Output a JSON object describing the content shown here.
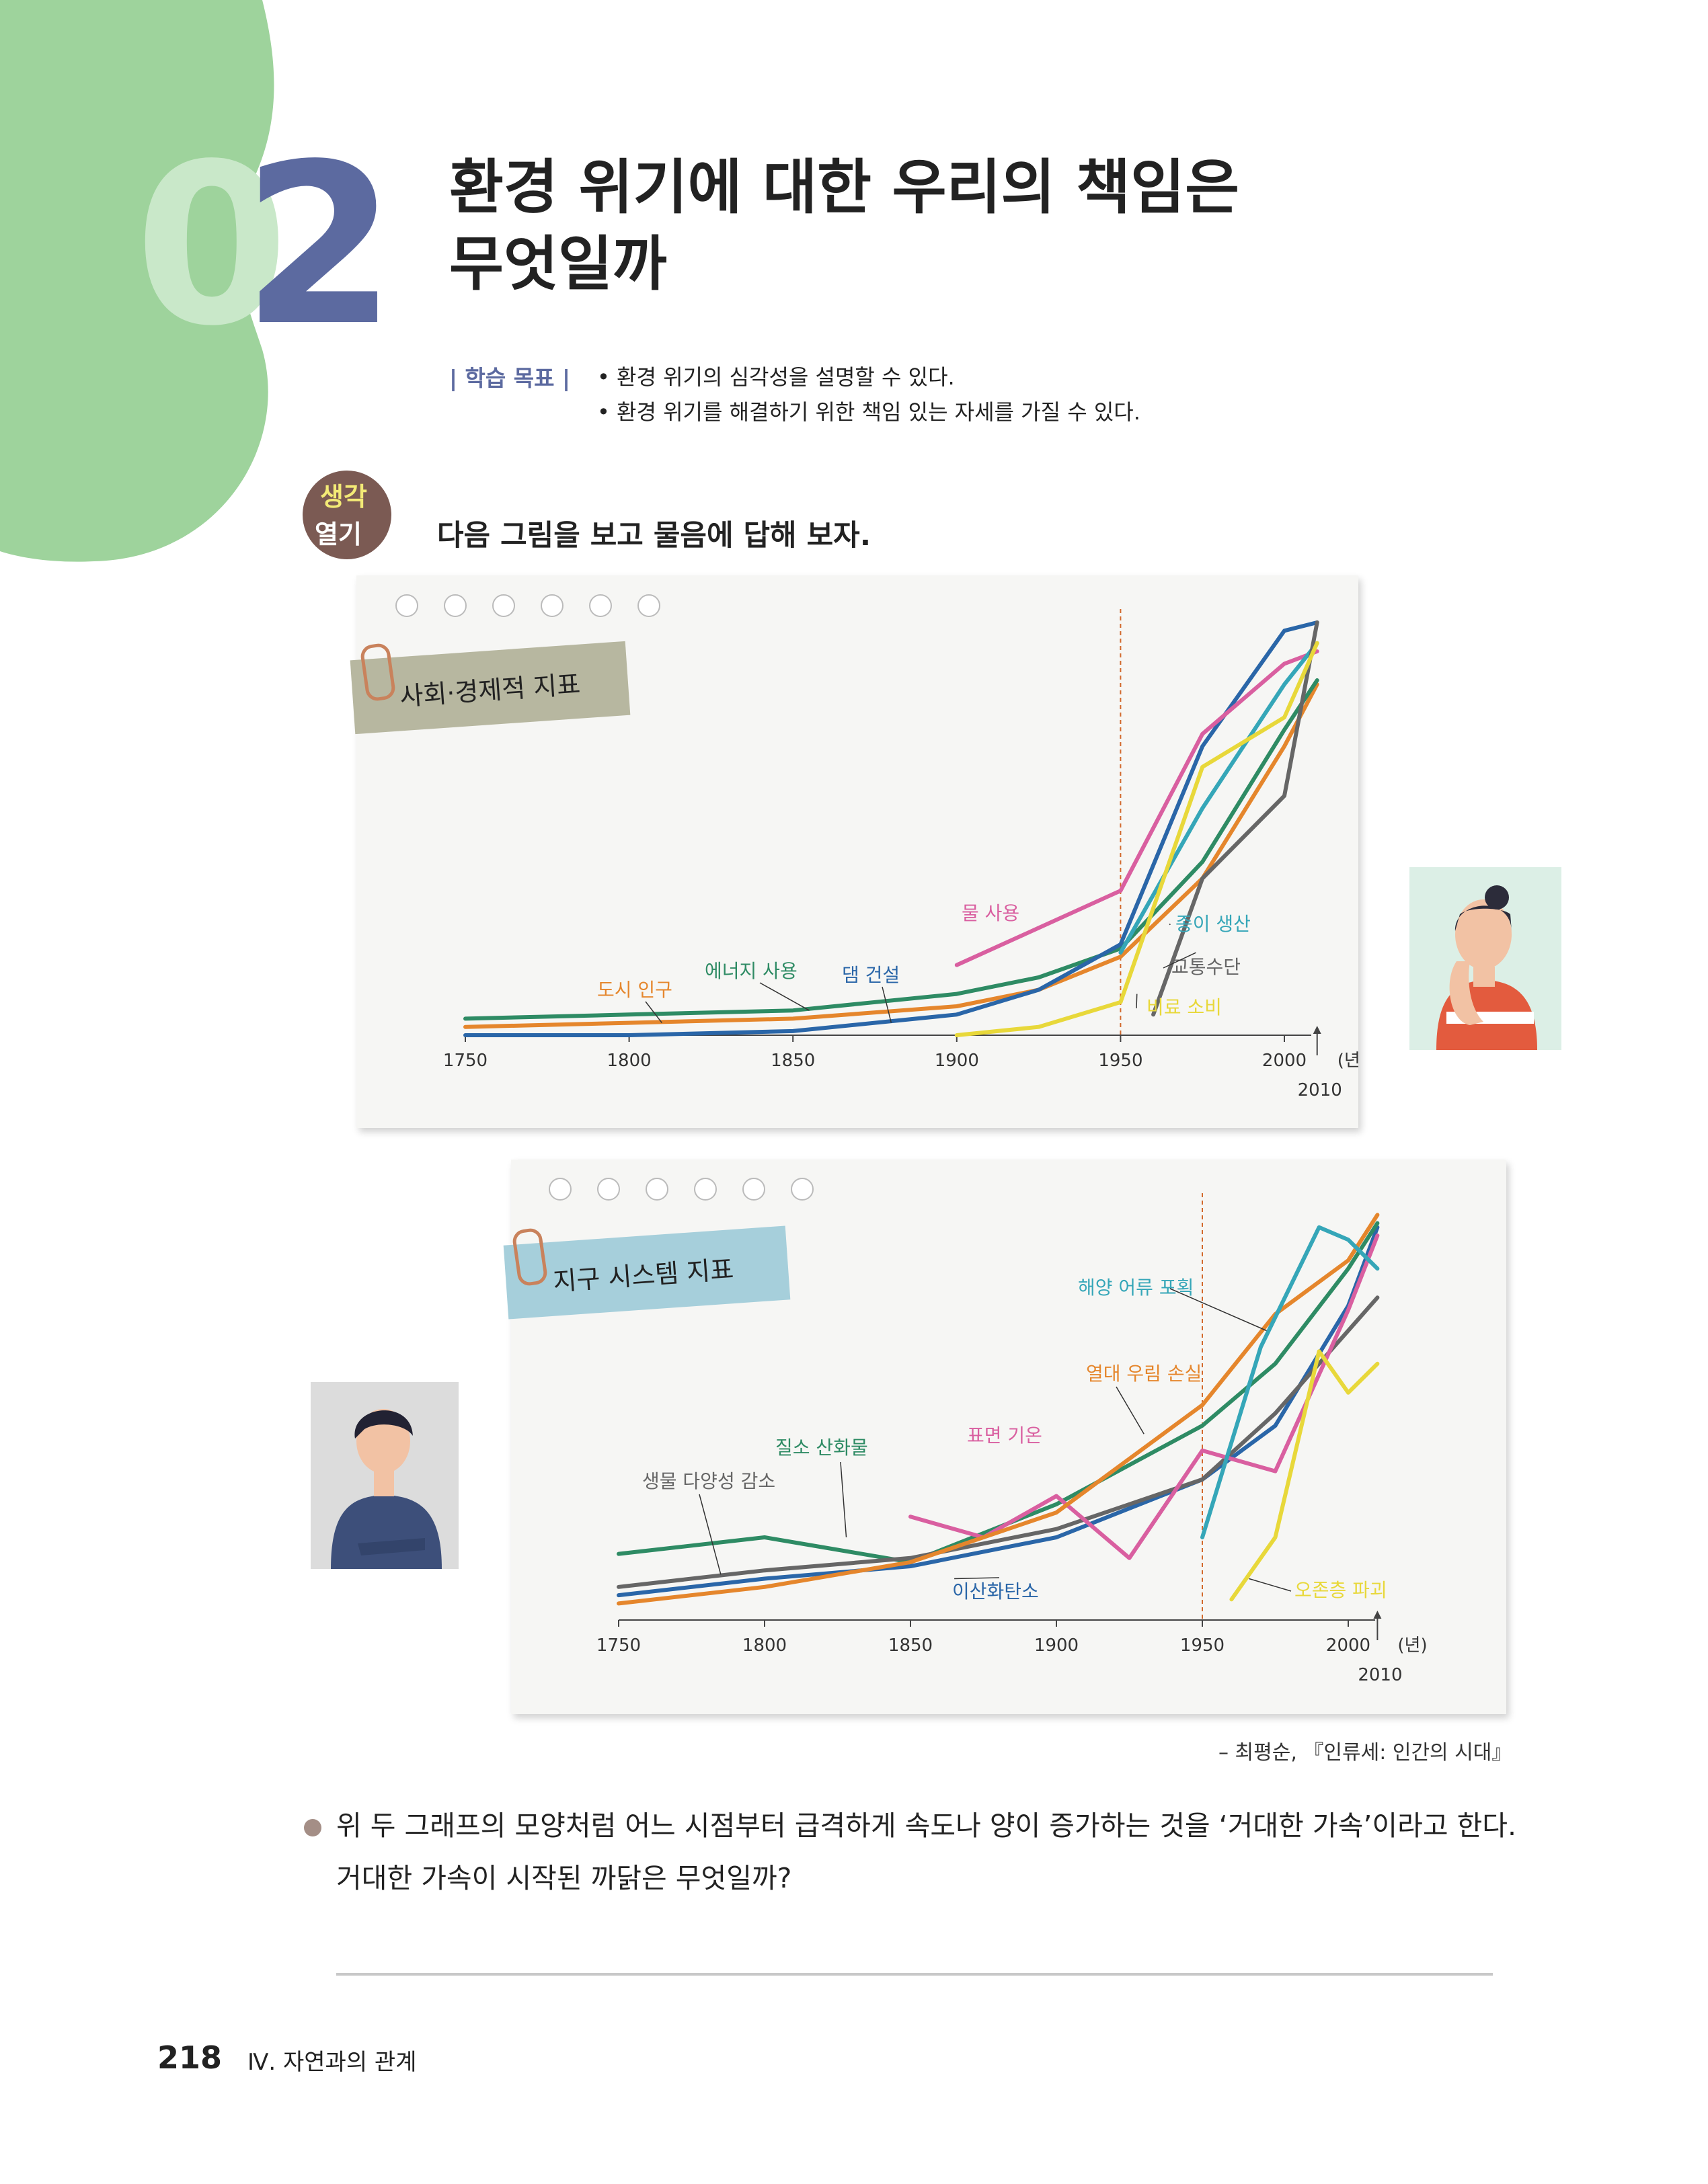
{
  "colors": {
    "green_blob": "#9ed39c",
    "number_zero": "#c9e8c9",
    "number_two": "#5c6aa0",
    "badge_brown": "#7b5a53",
    "tag_khaki": "#b7b7a0",
    "tag_blue": "#a6cfdb"
  },
  "lesson": {
    "number_zero": "0",
    "number_two": "2",
    "title_line1": "환경 위기에 대한 우리의 책임은",
    "title_line2": "무엇일까"
  },
  "goals": {
    "label": "| 학습 목표 |",
    "items": [
      "• 환경 위기의 심각성을 설명할 수 있다.",
      "• 환경 위기를 해결하기 위한 책임 있는 자세를 가질 수 있다."
    ]
  },
  "opening": {
    "badge_line1": "생각",
    "badge_line2": "열기",
    "prompt": "다음 그림을 보고 물음에 답해 보자."
  },
  "chart_data": [
    {
      "type": "line",
      "title": "사회·경제적 지표",
      "x_ticks": [
        "1750",
        "1800",
        "1850",
        "1900",
        "1950",
        "2000"
      ],
      "x_unit": "(년)",
      "x_end_label": "2010",
      "highlight_year": "1950",
      "series": [
        {
          "name": "도시 인구",
          "color": "#e5862c",
          "x": [
            1750,
            1800,
            1850,
            1900,
            1925,
            1950,
            1975,
            2000,
            2010
          ],
          "y": [
            0.02,
            0.03,
            0.04,
            0.07,
            0.11,
            0.19,
            0.38,
            0.7,
            0.85
          ]
        },
        {
          "name": "에너지 사용",
          "color": "#2e8b64",
          "x": [
            1750,
            1800,
            1850,
            1900,
            1925,
            1950,
            1975,
            2000,
            2010
          ],
          "y": [
            0.04,
            0.05,
            0.06,
            0.1,
            0.14,
            0.21,
            0.42,
            0.74,
            0.86
          ]
        },
        {
          "name": "댐 건설",
          "color": "#2a66a8",
          "x": [
            1750,
            1800,
            1850,
            1900,
            1925,
            1950,
            1975,
            2000,
            2010
          ],
          "y": [
            0.0,
            0.0,
            0.01,
            0.05,
            0.11,
            0.22,
            0.7,
            0.98,
            1.0
          ]
        },
        {
          "name": "물 사용",
          "color": "#d95fa0",
          "x": [
            1900,
            1925,
            1950,
            1975,
            2000,
            2010
          ],
          "y": [
            0.17,
            0.26,
            0.35,
            0.73,
            0.9,
            0.93
          ]
        },
        {
          "name": "종이 생산",
          "color": "#35a6b8",
          "x": [
            1950,
            1975,
            2000,
            2010
          ],
          "y": [
            0.2,
            0.55,
            0.85,
            0.95
          ]
        },
        {
          "name": "교통수단",
          "color": "#666666",
          "x": [
            1960,
            1975,
            2000,
            2010
          ],
          "y": [
            0.05,
            0.38,
            0.58,
            1.0
          ]
        },
        {
          "name": "비료 소비",
          "color": "#e8d83a",
          "x": [
            1900,
            1925,
            1950,
            1975,
            2000,
            2010
          ],
          "y": [
            0.0,
            0.02,
            0.08,
            0.65,
            0.77,
            0.95
          ]
        }
      ]
    },
    {
      "type": "line",
      "title": "지구 시스템 지표",
      "x_ticks": [
        "1750",
        "1800",
        "1850",
        "1900",
        "1950",
        "2000"
      ],
      "x_unit": "(년)",
      "x_end_label": "2010",
      "highlight_year": "1950",
      "series": [
        {
          "name": "이산화탄소",
          "color": "#2a66a8",
          "x": [
            1750,
            1800,
            1850,
            1900,
            1950,
            1975,
            2000,
            2010
          ],
          "y": [
            0.06,
            0.1,
            0.13,
            0.2,
            0.34,
            0.47,
            0.76,
            0.95
          ]
        },
        {
          "name": "질소 산화물",
          "color": "#2e8b64",
          "x": [
            1750,
            1800,
            1850,
            1900,
            1950,
            1975,
            2000,
            2010
          ],
          "y": [
            0.16,
            0.2,
            0.14,
            0.28,
            0.47,
            0.62,
            0.85,
            0.96
          ]
        },
        {
          "name": "생물 다양성 감소",
          "color": "#666666",
          "x": [
            1750,
            1800,
            1850,
            1900,
            1950,
            1975,
            2000,
            2010
          ],
          "y": [
            0.08,
            0.12,
            0.15,
            0.22,
            0.34,
            0.5,
            0.7,
            0.78
          ]
        },
        {
          "name": "표면 기온",
          "color": "#d95fa0",
          "x": [
            1850,
            1875,
            1900,
            1925,
            1950,
            1975,
            2000,
            2010
          ],
          "y": [
            0.25,
            0.2,
            0.3,
            0.15,
            0.41,
            0.36,
            0.75,
            0.93
          ]
        },
        {
          "name": "열대 우림 손실",
          "color": "#e5862c",
          "x": [
            1750,
            1800,
            1850,
            1900,
            1950,
            1975,
            2000,
            2010
          ],
          "y": [
            0.04,
            0.08,
            0.14,
            0.26,
            0.52,
            0.74,
            0.87,
            0.98
          ]
        },
        {
          "name": "해양 어류 포획",
          "color": "#35a6b8",
          "x": [
            1950,
            1970,
            1990,
            2000,
            2010
          ],
          "y": [
            0.2,
            0.66,
            0.95,
            0.92,
            0.85
          ]
        },
        {
          "name": "오존층 파괴",
          "color": "#e8d83a",
          "x": [
            1960,
            1975,
            1990,
            2000,
            2010
          ],
          "y": [
            0.05,
            0.2,
            0.65,
            0.55,
            0.62
          ]
        }
      ]
    }
  ],
  "source": "– 최평순, 『인류세: 인간의 시대』",
  "question": {
    "line1": "위 두 그래프의 모양처럼 어느 시점부터 급격하게 속도나 양이 증가하는 것을 ‘거대한 가속’이라고 한다.",
    "line2": "거대한 가속이 시작된 까닭은 무엇일까?"
  },
  "footer": {
    "page_number": "218",
    "chapter": "Ⅳ. 자연과의 관계"
  }
}
